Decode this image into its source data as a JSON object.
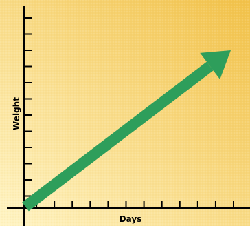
{
  "chart_data": {
    "type": "line",
    "title": "",
    "xlabel": "Days",
    "ylabel": "Weight",
    "xlim": [
      0,
      12
    ],
    "ylim": [
      0,
      12
    ],
    "grid": false,
    "tick_labels_shown": false,
    "x_tick_count": 12,
    "y_tick_count": 12,
    "series": [
      {
        "x": [
          0,
          12
        ],
        "y": [
          0,
          10
        ],
        "marker": "arrow"
      }
    ]
  },
  "colors": {
    "background_light": "#fff4c4",
    "background_dark": "#f2c24a",
    "arrow": "#2e9e5b",
    "axis": "#000000"
  }
}
